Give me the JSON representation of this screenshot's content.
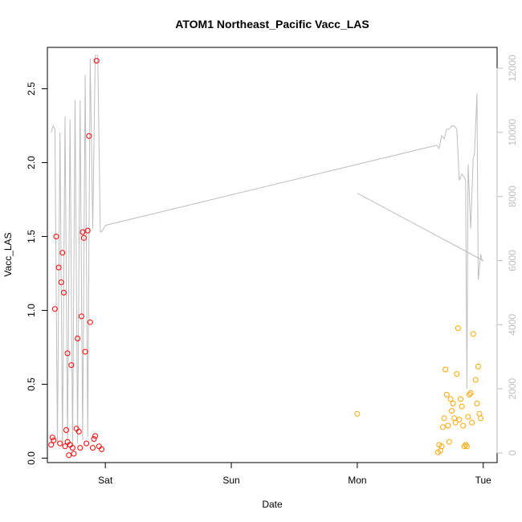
{
  "chart_data": {
    "type": "scatter",
    "title": "ATOM1 Northeast_Pacific Vacc_LAS",
    "xlabel": "Date",
    "ylabel": "Vacc_LAS",
    "x_unit": "days",
    "x_ticks": [
      {
        "value": 1.0,
        "label": "Sat"
      },
      {
        "value": 2.0,
        "label": "Sun"
      },
      {
        "value": 3.0,
        "label": "Mon"
      },
      {
        "value": 4.0,
        "label": "Tue"
      }
    ],
    "xlim": [
      0.54,
      4.11
    ],
    "ylim": [
      -0.03,
      2.78
    ],
    "y_ticks": [
      0.0,
      0.5,
      1.0,
      1.5,
      2.0,
      2.5
    ],
    "y_tick_labels": [
      "0.0",
      "0.5",
      "1.0",
      "1.5",
      "2.0",
      "2.5"
    ],
    "y2lim": [
      -300,
      12650
    ],
    "y2_ticks": [
      0,
      2000,
      4000,
      6000,
      8000,
      10000,
      12000
    ],
    "y2_tick_labels": [
      "0",
      "2000",
      "4000",
      "6000",
      "8000",
      "10000",
      "12000"
    ],
    "colors": {
      "red": "#ff0000",
      "orange": "#ffa500",
      "line": "#bebebe"
    },
    "series": [
      {
        "color": "#ff0000",
        "x": [
          0.57,
          0.58,
          0.59,
          0.6,
          0.61,
          0.63,
          0.64,
          0.65,
          0.66,
          0.67,
          0.68,
          0.69,
          0.7,
          0.7,
          0.71,
          0.72,
          0.73,
          0.74,
          0.75,
          0.77,
          0.78,
          0.79,
          0.8,
          0.81,
          0.82,
          0.83,
          0.84,
          0.85,
          0.86,
          0.87,
          0.88,
          0.9,
          0.91,
          0.92,
          0.93,
          0.95,
          0.97
        ],
        "y": [
          0.09,
          0.14,
          0.12,
          1.01,
          1.5,
          1.29,
          0.1,
          1.19,
          1.39,
          1.12,
          0.08,
          0.19,
          0.71,
          0.11,
          0.02,
          0.09,
          0.63,
          0.07,
          0.03,
          0.2,
          0.81,
          0.18,
          0.07,
          0.96,
          1.53,
          1.49,
          0.72,
          0.1,
          1.54,
          2.18,
          0.92,
          0.07,
          0.13,
          0.15,
          2.69,
          0.08,
          0.06
        ]
      },
      {
        "color": "#ffa500",
        "x": [
          3.0,
          3.64,
          3.65,
          3.66,
          3.67,
          3.68,
          3.69,
          3.7,
          3.71,
          3.72,
          3.73,
          3.74,
          3.75,
          3.76,
          3.77,
          3.78,
          3.79,
          3.8,
          3.81,
          3.82,
          3.83,
          3.84,
          3.85,
          3.86,
          3.87,
          3.88,
          3.89,
          3.9,
          3.91,
          3.92,
          3.94,
          3.95,
          3.96,
          3.97,
          3.98
        ],
        "y": [
          0.3,
          0.04,
          0.09,
          0.05,
          0.08,
          0.21,
          0.27,
          0.6,
          0.43,
          0.22,
          0.11,
          0.4,
          0.32,
          0.37,
          0.27,
          0.24,
          0.57,
          0.88,
          0.26,
          0.4,
          0.35,
          0.22,
          0.08,
          0.09,
          0.08,
          0.28,
          0.43,
          0.44,
          0.24,
          0.84,
          0.53,
          0.37,
          0.62,
          0.3,
          0.27
        ]
      }
    ],
    "line_series": {
      "color": "#bebebe",
      "axis": "right",
      "x": [
        0.57,
        0.585,
        0.6,
        0.62,
        0.64,
        0.66,
        0.68,
        0.7,
        0.72,
        0.74,
        0.76,
        0.78,
        0.8,
        0.82,
        0.84,
        0.86,
        0.88,
        0.9,
        0.92,
        0.94,
        0.96,
        0.97,
        1.0,
        3.63,
        3.65,
        3.67,
        3.69,
        3.71,
        3.73,
        3.75,
        3.77,
        3.79,
        3.81,
        3.83,
        3.85,
        3.86,
        3.87,
        3.88,
        3.9,
        3.92,
        3.93,
        3.95,
        3.96,
        3.98,
        3.99,
        4.0,
        3.0
      ],
      "y": [
        10000,
        10200,
        10100,
        300,
        10000,
        200,
        10500,
        300,
        10400,
        200,
        11000,
        300,
        11000,
        400,
        11800,
        500,
        12300,
        7000,
        12400,
        12400,
        6900,
        6900,
        7100,
        9600,
        9500,
        9900,
        9800,
        10100,
        10100,
        10200,
        10200,
        10100,
        8500,
        8700,
        8600,
        8500,
        2000,
        9000,
        7000,
        9200,
        9300,
        11200,
        5400,
        6200,
        6000,
        6000,
        8100
      ]
    }
  }
}
